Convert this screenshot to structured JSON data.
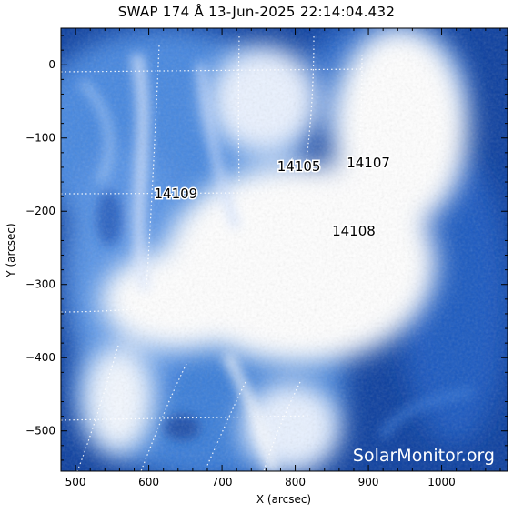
{
  "title": "SWAP 174 Å 13-Jun-2025 22:14:04.432",
  "watermark": "SolarMonitor.org",
  "map": {
    "x_label": "X (arcsec)",
    "y_label": "Y (arcsec)",
    "x_range": [
      480,
      1090
    ],
    "y_range": [
      -555,
      50
    ],
    "x_ticks": [
      "500",
      "600",
      "700",
      "800",
      "900",
      "1000"
    ],
    "y_ticks": [
      "0",
      "−100",
      "−200",
      "−300",
      "−400",
      "−500"
    ],
    "active_regions": [
      {
        "label": "14105",
        "x": 805,
        "y": -145
      },
      {
        "label": "14107",
        "x": 900,
        "y": -140
      },
      {
        "label": "14108",
        "x": 880,
        "y": -233
      },
      {
        "label": "14109",
        "x": 637,
        "y": -182
      }
    ],
    "colors": {
      "bright": "#ffffff",
      "mid": "#4d8fe6",
      "dark": "#0a3ea8",
      "background": "#0c3f9f"
    }
  }
}
